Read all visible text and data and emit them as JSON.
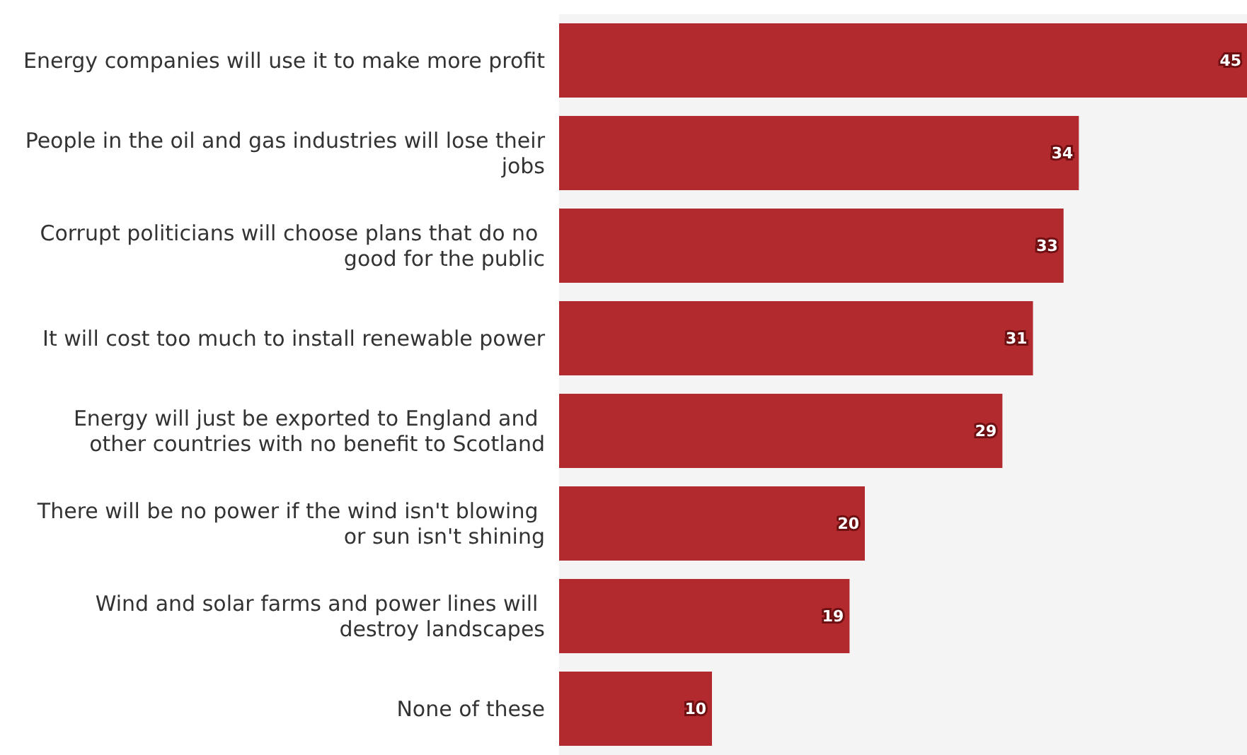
{
  "chart_data": {
    "type": "bar",
    "orientation": "horizontal",
    "categories": [
      "Energy companies will use it to make more profit",
      "People in the oil and gas industries will lose their jobs",
      "Corrupt politicians will choose plans that do no good for the public",
      "It will cost too much to install renewable power",
      "Energy will just be exported to England and other countries with no benefit to Scotland",
      "There will be no power if the wind isn't blowing or sun isn't shining",
      "Wind and solar farms and power lines will destroy landscapes",
      "None of these"
    ],
    "values": [
      45,
      34,
      33,
      31,
      29,
      20,
      19,
      10
    ],
    "color": "#b22a2e",
    "data_labels": true
  }
}
